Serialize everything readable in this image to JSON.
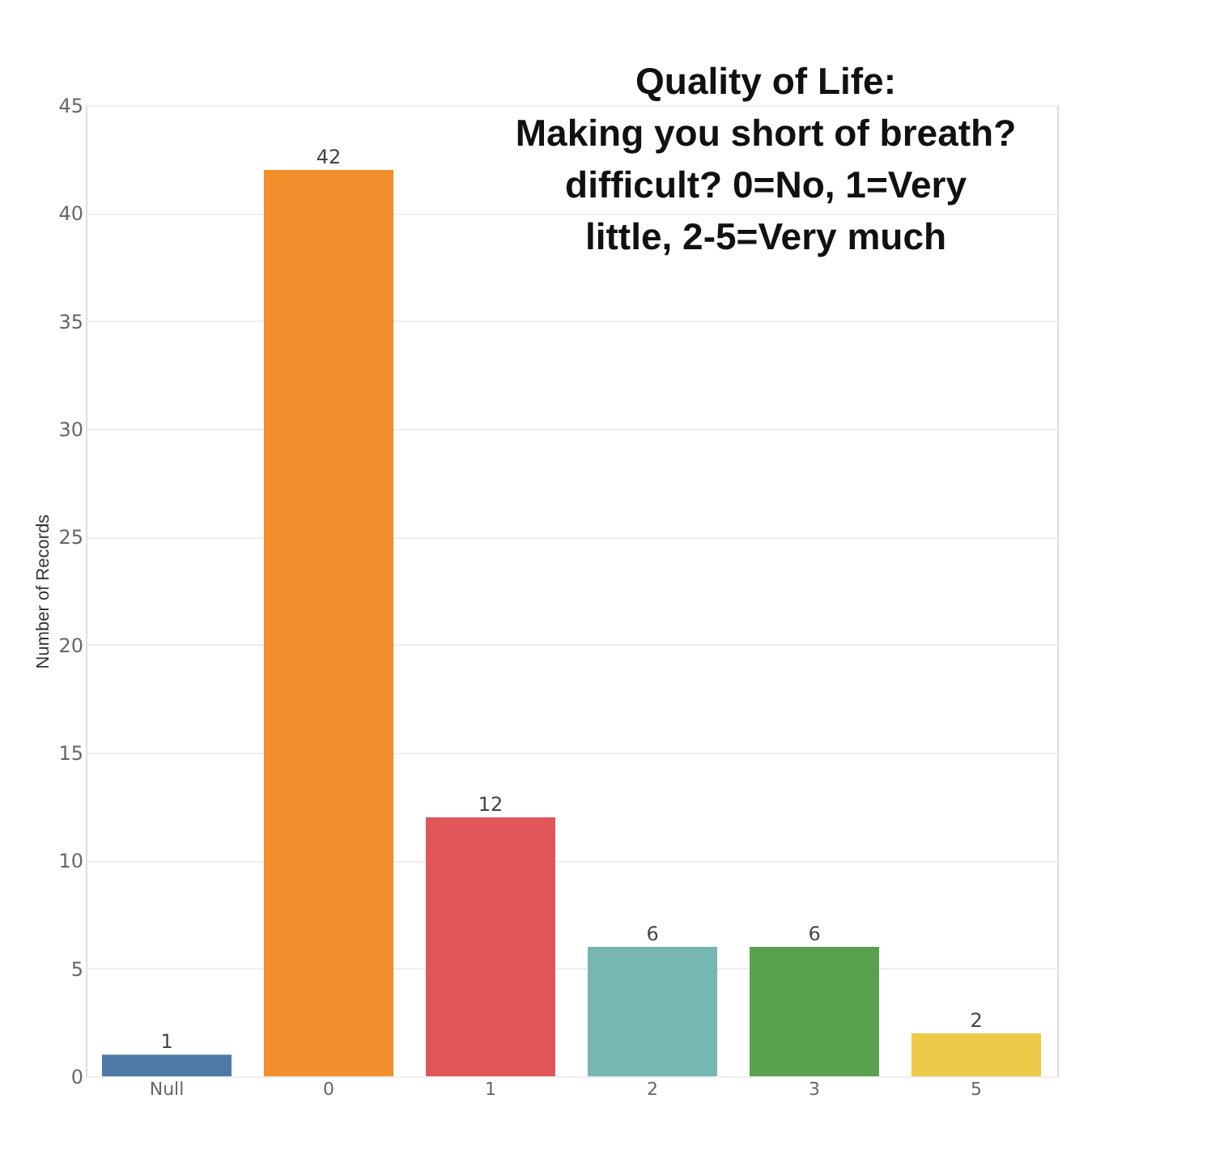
{
  "chart_data": {
    "type": "bar",
    "title": "Quality of Life:\nMaking you short of breath?\ndifficult?  0=No, 1=Very\nlittle, 2-5=Very much",
    "ylabel": "Number of Records",
    "categories": [
      "Null",
      "0",
      "1",
      "2",
      "3",
      "5"
    ],
    "values": [
      1,
      42,
      12,
      6,
      6,
      2
    ],
    "colors": [
      "#4e79a7",
      "#f28e2b",
      "#e15759",
      "#76b7b2",
      "#59a14f",
      "#edc948"
    ],
    "ylim": [
      0,
      45
    ],
    "yticks": [
      0,
      5,
      10,
      15,
      20,
      25,
      30,
      35,
      40,
      45
    ],
    "grid": "y",
    "data_labels": true
  }
}
